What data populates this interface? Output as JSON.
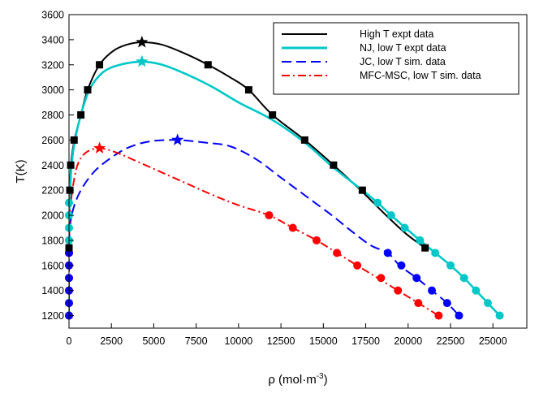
{
  "chart_data": {
    "type": "line",
    "title": "",
    "xlabel": "ρ (mol·m",
    "xlabel_exp": "-3",
    "xlabel_close": ")",
    "ylabel": "T(K)",
    "xlim": [
      0,
      27000
    ],
    "ylim": [
      1100,
      3600
    ],
    "xticks": [
      0,
      2500,
      5000,
      7500,
      10000,
      12500,
      15000,
      17500,
      20000,
      22500,
      25000
    ],
    "xtick_labels": [
      "0",
      "2500",
      "5000",
      "7500",
      "10000",
      "12500",
      "15000",
      "17500",
      "20000",
      "22500",
      "25000"
    ],
    "yticks": [
      1200,
      1400,
      1600,
      1800,
      2000,
      2200,
      2400,
      2600,
      2800,
      3000,
      3200,
      3400,
      3600
    ],
    "ytick_labels": [
      "1200",
      "1400",
      "1600",
      "1800",
      "2000",
      "2200",
      "2400",
      "2600",
      "2800",
      "3000",
      "3200",
      "3400",
      "3600"
    ],
    "legend_position": "top-right",
    "series": [
      {
        "name": "High T expt data",
        "color": "#000000",
        "dash": "solid",
        "marker": "square",
        "curve": [
          [
            0,
            1720
          ],
          [
            50,
            2200
          ],
          [
            150,
            2450
          ],
          [
            350,
            2620
          ],
          [
            700,
            2800
          ],
          [
            1100,
            3000
          ],
          [
            1800,
            3200
          ],
          [
            2600,
            3310
          ],
          [
            3400,
            3360
          ],
          [
            4300,
            3380
          ],
          [
            5500,
            3360
          ],
          [
            7000,
            3280
          ],
          [
            8200,
            3200
          ],
          [
            9500,
            3100
          ],
          [
            10600,
            3000
          ],
          [
            12000,
            2800
          ],
          [
            13900,
            2600
          ],
          [
            15600,
            2400
          ],
          [
            17200,
            2200
          ],
          [
            18700,
            2000
          ],
          [
            19900,
            1850
          ],
          [
            21000,
            1740
          ]
        ],
        "points": [
          [
            0,
            1740
          ],
          [
            50,
            2200
          ],
          [
            100,
            2400
          ],
          [
            300,
            2600
          ],
          [
            700,
            2800
          ],
          [
            1100,
            3000
          ],
          [
            1800,
            3200
          ],
          [
            8200,
            3200
          ],
          [
            10600,
            3000
          ],
          [
            12000,
            2800
          ],
          [
            13900,
            2600
          ],
          [
            15600,
            2400
          ],
          [
            17300,
            2200
          ],
          [
            21000,
            1740
          ]
        ],
        "critical": [
          4300,
          3380
        ]
      },
      {
        "name": "NJ, low T expt data",
        "color": "#00c8c8",
        "dash": "solid",
        "marker": "circle",
        "curve": [
          [
            0,
            1800
          ],
          [
            40,
            2100
          ],
          [
            150,
            2400
          ],
          [
            350,
            2600
          ],
          [
            700,
            2800
          ],
          [
            1200,
            3000
          ],
          [
            2000,
            3140
          ],
          [
            3000,
            3200
          ],
          [
            4300,
            3225
          ],
          [
            5500,
            3200
          ],
          [
            7000,
            3120
          ],
          [
            8500,
            3020
          ],
          [
            10000,
            2900
          ],
          [
            12000,
            2760
          ],
          [
            13900,
            2580
          ],
          [
            15600,
            2380
          ],
          [
            17300,
            2200
          ],
          [
            18200,
            2100
          ],
          [
            19000,
            2000
          ],
          [
            20700,
            1800
          ],
          [
            21600,
            1700
          ],
          [
            22500,
            1600
          ],
          [
            23300,
            1500
          ],
          [
            24000,
            1400
          ],
          [
            24700,
            1300
          ],
          [
            25400,
            1200
          ]
        ],
        "points": [
          [
            0,
            1800
          ],
          [
            0,
            1900
          ],
          [
            0,
            2000
          ],
          [
            0,
            2100
          ],
          [
            18200,
            2100
          ],
          [
            19000,
            2000
          ],
          [
            19800,
            1900
          ],
          [
            20700,
            1800
          ],
          [
            21600,
            1700
          ],
          [
            22500,
            1600
          ],
          [
            23300,
            1500
          ],
          [
            24000,
            1400
          ],
          [
            24700,
            1300
          ],
          [
            25400,
            1200
          ]
        ],
        "critical": [
          4300,
          3225
        ]
      },
      {
        "name": "JC, low T sim. data",
        "color": "#0000ff",
        "dash": "dashed",
        "marker": "circle",
        "curve": [
          [
            0,
            1200
          ],
          [
            0,
            1700
          ],
          [
            50,
            1900
          ],
          [
            250,
            2050
          ],
          [
            700,
            2200
          ],
          [
            1500,
            2350
          ],
          [
            2500,
            2460
          ],
          [
            3500,
            2540
          ],
          [
            4800,
            2590
          ],
          [
            6400,
            2600
          ],
          [
            8000,
            2580
          ],
          [
            9500,
            2550
          ],
          [
            11000,
            2450
          ],
          [
            12500,
            2300
          ],
          [
            14000,
            2150
          ],
          [
            15500,
            2000
          ],
          [
            16600,
            1880
          ],
          [
            17800,
            1760
          ],
          [
            18800,
            1700
          ],
          [
            19500,
            1600
          ],
          [
            20500,
            1500
          ],
          [
            21400,
            1400
          ],
          [
            22300,
            1300
          ],
          [
            23000,
            1200
          ]
        ],
        "points": [
          [
            0,
            1200
          ],
          [
            0,
            1300
          ],
          [
            0,
            1400
          ],
          [
            0,
            1500
          ],
          [
            0,
            1600
          ],
          [
            0,
            1700
          ],
          [
            18800,
            1700
          ],
          [
            19600,
            1600
          ],
          [
            20500,
            1500
          ],
          [
            21400,
            1400
          ],
          [
            22300,
            1300
          ],
          [
            23000,
            1200
          ]
        ],
        "critical": [
          6400,
          2600
        ]
      },
      {
        "name": "MFC-MSC, low T sim. data",
        "color": "#ff0000",
        "dash": "dashdot",
        "marker": "circle",
        "curve": [
          [
            0,
            1200
          ],
          [
            0,
            1700
          ],
          [
            60,
            2000
          ],
          [
            200,
            2200
          ],
          [
            500,
            2400
          ],
          [
            1000,
            2500
          ],
          [
            1800,
            2535
          ],
          [
            2800,
            2500
          ],
          [
            4000,
            2430
          ],
          [
            5500,
            2340
          ],
          [
            7000,
            2250
          ],
          [
            8500,
            2160
          ],
          [
            10000,
            2080
          ],
          [
            11800,
            2000
          ],
          [
            13200,
            1900
          ],
          [
            14600,
            1800
          ],
          [
            15800,
            1700
          ],
          [
            17000,
            1600
          ],
          [
            18200,
            1500
          ],
          [
            19400,
            1400
          ],
          [
            20600,
            1300
          ],
          [
            21800,
            1200
          ]
        ],
        "points": [
          [
            0,
            1200
          ],
          [
            0,
            1300
          ],
          [
            0,
            1400
          ],
          [
            0,
            1500
          ],
          [
            0,
            1600
          ],
          [
            0,
            1700
          ],
          [
            11800,
            2000
          ],
          [
            13200,
            1900
          ],
          [
            14600,
            1800
          ],
          [
            15800,
            1700
          ],
          [
            17000,
            1600
          ],
          [
            18400,
            1500
          ],
          [
            19400,
            1400
          ],
          [
            20600,
            1300
          ],
          [
            21800,
            1200
          ]
        ],
        "critical": [
          1800,
          2535
        ]
      }
    ]
  }
}
